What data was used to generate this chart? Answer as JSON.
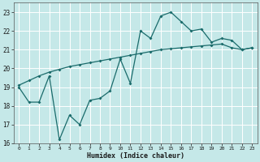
{
  "xlabel": "Humidex (Indice chaleur)",
  "bg_color": "#c5e8e8",
  "line_color": "#1a6b6b",
  "ylim": [
    16,
    23.5
  ],
  "xlim": [
    -0.5,
    23.5
  ],
  "yticks": [
    16,
    17,
    18,
    19,
    20,
    21,
    22,
    23
  ],
  "xticks": [
    0,
    1,
    2,
    3,
    4,
    5,
    6,
    7,
    8,
    9,
    10,
    11,
    12,
    13,
    14,
    15,
    16,
    17,
    18,
    19,
    20,
    21,
    22,
    23
  ],
  "x_data": [
    0,
    1,
    2,
    3,
    4,
    5,
    6,
    7,
    8,
    9,
    10,
    11,
    12,
    13,
    14,
    15,
    16,
    17,
    18,
    19,
    20,
    21,
    22,
    23
  ],
  "y_main": [
    19.0,
    18.2,
    18.2,
    19.6,
    16.2,
    17.5,
    17.0,
    18.3,
    18.4,
    18.8,
    20.5,
    19.2,
    22.0,
    21.6,
    22.8,
    23.0,
    22.5,
    22.0,
    22.1,
    21.4,
    21.6,
    21.5,
    21.0,
    21.1
  ],
  "y_trend": [
    19.1,
    19.35,
    19.6,
    19.8,
    19.95,
    20.1,
    20.2,
    20.3,
    20.4,
    20.5,
    20.6,
    20.7,
    20.8,
    20.9,
    21.0,
    21.05,
    21.1,
    21.15,
    21.2,
    21.25,
    21.3,
    21.1,
    21.0,
    21.1
  ]
}
